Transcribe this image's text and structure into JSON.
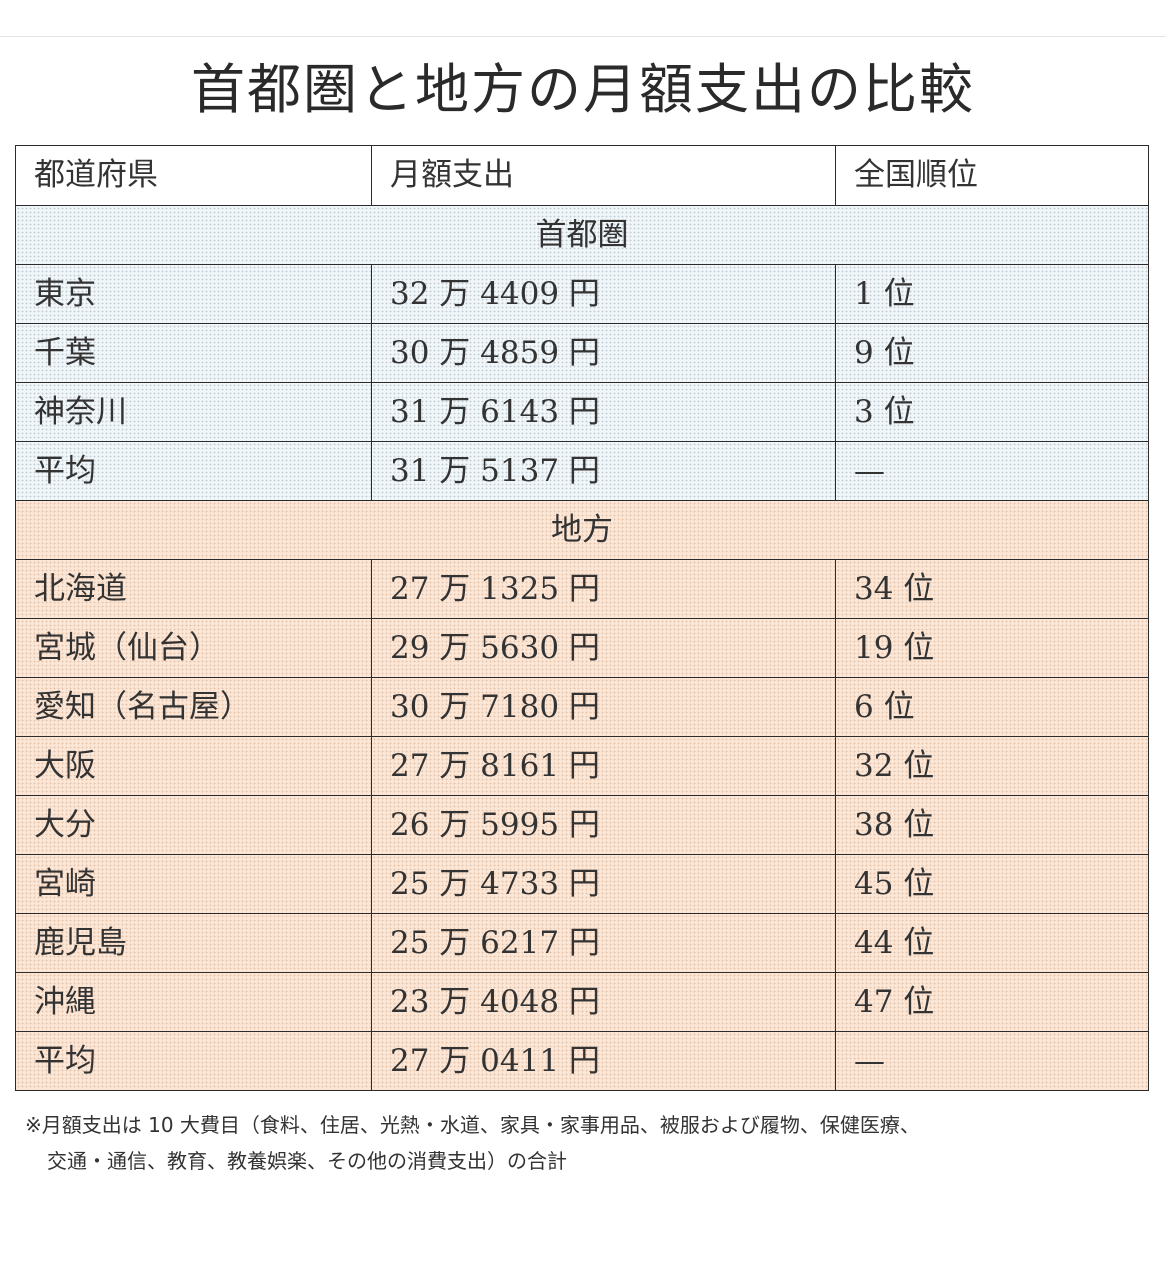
{
  "title": "首都圏と地方の月額支出の比較",
  "header": [
    "都道府県",
    "月額支出",
    "全国順位"
  ],
  "sections": [
    {
      "label": "首都圏",
      "rows": [
        [
          "東京",
          "32 万 4409 円",
          "1 位"
        ],
        [
          "千葉",
          "30 万 4859 円",
          "9 位"
        ],
        [
          "神奈川",
          "31 万 6143 円",
          "3 位"
        ],
        [
          "平均",
          "31 万 5137 円",
          "—"
        ]
      ]
    },
    {
      "label": "地方",
      "rows": [
        [
          "北海道",
          "27 万 1325 円",
          "34 位"
        ],
        [
          "宮城（仙台）",
          "29 万 5630 円",
          "19 位"
        ],
        [
          "愛知（名古屋）",
          "30 万 7180 円",
          "6 位"
        ],
        [
          "大阪",
          "27 万 8161 円",
          "32 位"
        ],
        [
          "大分",
          "26 万 5995 円",
          "38 位"
        ],
        [
          "宮崎",
          "25 万 4733 円",
          "45 位"
        ],
        [
          "鹿児島",
          "25 万 6217 円",
          "44 位"
        ],
        [
          "沖縄",
          "23 万 4048 円",
          "47 位"
        ],
        [
          "平均",
          "27 万 0411 円",
          "—"
        ]
      ]
    }
  ],
  "footnote": {
    "line1": "※月額支出は 10 大費目（食料、住居、光熱・水道、家具・家事用品、被服および履物、保健医療、",
    "line2": "交通・通信、教育、教養娯楽、その他の消費支出）の合計"
  },
  "colors": {
    "metro_bg": "#f1f6f9",
    "regional_bg": "#fce6d6",
    "border": "#2b2b2b"
  }
}
